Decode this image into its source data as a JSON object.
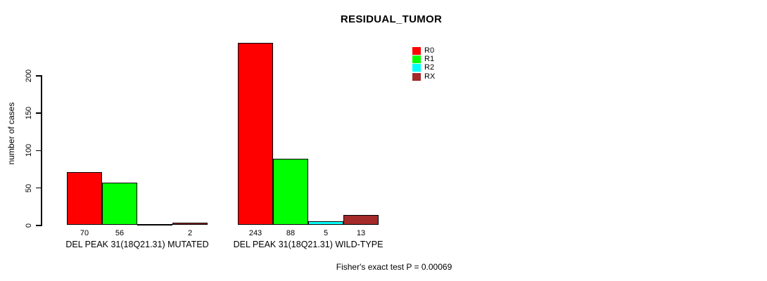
{
  "chart_data": {
    "type": "bar",
    "title": "RESIDUAL_TUMOR",
    "ylabel": "number of cases",
    "xlabel": "",
    "yticks": [
      0,
      50,
      100,
      150,
      200
    ],
    "ylim": [
      0,
      250
    ],
    "grid": false,
    "legend_position": "top-right",
    "categories": [
      "DEL PEAK 31(18Q21.31) MUTATED",
      "DEL PEAK 31(18Q21.31) WILD-TYPE"
    ],
    "series": [
      {
        "name": "R0",
        "color": "#ff0000",
        "values": [
          70,
          243
        ]
      },
      {
        "name": "R1",
        "color": "#00ff00",
        "values": [
          56,
          88
        ]
      },
      {
        "name": "R2",
        "color": "#00ffff",
        "values": [
          0,
          5
        ]
      },
      {
        "name": "RX",
        "color": "#a52a2a",
        "values": [
          2,
          13
        ]
      }
    ],
    "bar_value_labels": [
      [
        "70",
        "56",
        "",
        "2"
      ],
      [
        "243",
        "88",
        "5",
        "13"
      ]
    ],
    "annotation": "Fisher's exact test P = 0.00069"
  }
}
